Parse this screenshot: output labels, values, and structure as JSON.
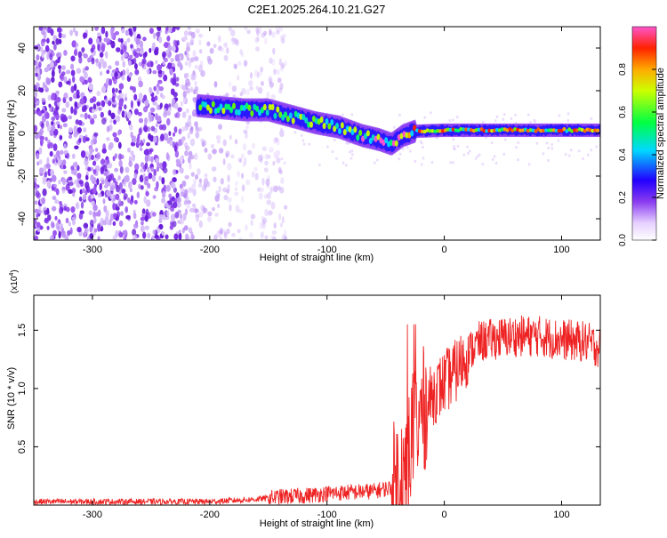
{
  "title": "C2E1.2025.264.10.21.G27",
  "chart_data": [
    {
      "type": "heatmap",
      "title": "C2E1.2025.264.10.21.G27",
      "xlabel": "Height of straight line (km)",
      "ylabel": "Frequency (Hz)",
      "xlim": [
        -350,
        133
      ],
      "ylim": [
        -50,
        50
      ],
      "xticks": [
        -300,
        -200,
        -100,
        0,
        100
      ],
      "yticks": [
        -40,
        -20,
        0,
        20,
        40
      ],
      "colorbar": {
        "label": "Normalized spectral amplitude",
        "range": [
          0.0,
          1.0
        ],
        "ticks": [
          0.0,
          0.2,
          0.4,
          0.6,
          0.8
        ]
      },
      "ridge": {
        "description": "Doppler frequency trace vs height",
        "points": [
          {
            "x": -210,
            "y": 13
          },
          {
            "x": -190,
            "y": 12
          },
          {
            "x": -170,
            "y": 11
          },
          {
            "x": -150,
            "y": 11
          },
          {
            "x": -130,
            "y": 8
          },
          {
            "x": -110,
            "y": 5
          },
          {
            "x": -90,
            "y": 3
          },
          {
            "x": -70,
            "y": -1
          },
          {
            "x": -55,
            "y": -3
          },
          {
            "x": -45,
            "y": -5
          },
          {
            "x": -35,
            "y": -1
          },
          {
            "x": -25,
            "y": 1
          },
          {
            "x": 0,
            "y": 1.5
          },
          {
            "x": 50,
            "y": 1.5
          },
          {
            "x": 100,
            "y": 1.5
          },
          {
            "x": 133,
            "y": 1.5
          }
        ]
      }
    },
    {
      "type": "line",
      "xlabel": "Height of straight line (km)",
      "ylabel": "SNR (10 * v/v)",
      "y_multiplier": "(x10",
      "y_multiplier_exp": "4",
      "xlim": [
        -350,
        133
      ],
      "ylim": [
        0,
        1.8
      ],
      "xticks": [
        -300,
        -200,
        -100,
        0,
        100
      ],
      "yticks": [
        0.5,
        1.0,
        1.5
      ],
      "series": [
        {
          "name": "SNR",
          "color": "#ee2222",
          "points": [
            [
              -350,
              0.03
            ],
            [
              -300,
              0.03
            ],
            [
              -250,
              0.03
            ],
            [
              -200,
              0.03
            ],
            [
              -180,
              0.04
            ],
            [
              -160,
              0.05
            ],
            [
              -140,
              0.07
            ],
            [
              -120,
              0.08
            ],
            [
              -100,
              0.1
            ],
            [
              -80,
              0.11
            ],
            [
              -60,
              0.12
            ],
            [
              -45,
              0.15
            ],
            [
              -35,
              0.3
            ],
            [
              -30,
              0.45
            ],
            [
              -25,
              0.7
            ],
            [
              -20,
              0.8
            ],
            [
              -15,
              0.85
            ],
            [
              -10,
              0.95
            ],
            [
              0,
              1.05
            ],
            [
              10,
              1.15
            ],
            [
              20,
              1.3
            ],
            [
              30,
              1.4
            ],
            [
              40,
              1.42
            ],
            [
              60,
              1.45
            ],
            [
              80,
              1.45
            ],
            [
              100,
              1.42
            ],
            [
              120,
              1.4
            ],
            [
              133,
              1.35
            ]
          ]
        }
      ]
    }
  ]
}
